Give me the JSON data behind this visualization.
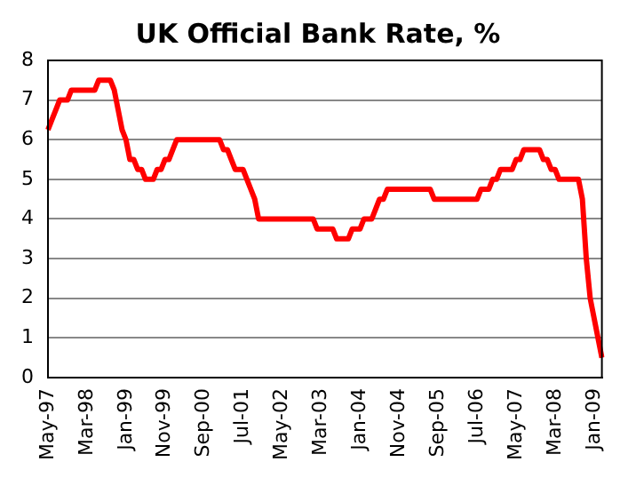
{
  "chart_data": {
    "type": "line",
    "title": "UK Official Bank Rate, %",
    "categories": [
      "May-97",
      null,
      null,
      null,
      null,
      null,
      null,
      null,
      null,
      null,
      "Mar-98",
      null,
      null,
      null,
      null,
      null,
      null,
      null,
      null,
      null,
      "Jan-99",
      null,
      null,
      null,
      null,
      null,
      null,
      null,
      null,
      null,
      "Nov-99",
      null,
      null,
      null,
      null,
      null,
      null,
      null,
      null,
      null,
      "Sep-00",
      null,
      null,
      null,
      null,
      null,
      null,
      null,
      null,
      null,
      "Jul-01",
      null,
      null,
      null,
      null,
      null,
      null,
      null,
      null,
      null,
      "May-02",
      null,
      null,
      null,
      null,
      null,
      null,
      null,
      null,
      null,
      "Mar-03",
      null,
      null,
      null,
      null,
      null,
      null,
      null,
      null,
      null,
      "Jan-04",
      null,
      null,
      null,
      null,
      null,
      null,
      null,
      null,
      null,
      "Nov-04",
      null,
      null,
      null,
      null,
      null,
      null,
      null,
      null,
      null,
      "Sep-05",
      null,
      null,
      null,
      null,
      null,
      null,
      null,
      null,
      null,
      "Jul-06",
      null,
      null,
      null,
      null,
      null,
      null,
      null,
      null,
      null,
      "May-07",
      null,
      null,
      null,
      null,
      null,
      null,
      null,
      null,
      null,
      "Mar-08",
      null,
      null,
      null,
      null,
      null,
      null,
      null,
      null,
      null,
      "Jan-09",
      null,
      null
    ],
    "series": [
      {
        "color": "#ff0000",
        "values": [
          6.25,
          6.5,
          6.75,
          7,
          7,
          7,
          7.25,
          7.25,
          7.25,
          7.25,
          7.25,
          7.25,
          7.25,
          7.5,
          7.5,
          7.5,
          7.5,
          7.25,
          6.75,
          6.25,
          6,
          5.5,
          5.5,
          5.25,
          5.25,
          5,
          5,
          5,
          5.25,
          5.25,
          5.5,
          5.5,
          5.75,
          6,
          6,
          6,
          6,
          6,
          6,
          6,
          6,
          6,
          6,
          6,
          6,
          5.75,
          5.75,
          5.5,
          5.25,
          5.25,
          5.25,
          5,
          4.75,
          4.5,
          4,
          4,
          4,
          4,
          4,
          4,
          4,
          4,
          4,
          4,
          4,
          4,
          4,
          4,
          4,
          3.75,
          3.75,
          3.75,
          3.75,
          3.75,
          3.5,
          3.5,
          3.5,
          3.5,
          3.75,
          3.75,
          3.75,
          4,
          4,
          4,
          4.25,
          4.5,
          4.5,
          4.75,
          4.75,
          4.75,
          4.75,
          4.75,
          4.75,
          4.75,
          4.75,
          4.75,
          4.75,
          4.75,
          4.75,
          4.5,
          4.5,
          4.5,
          4.5,
          4.5,
          4.5,
          4.5,
          4.5,
          4.5,
          4.5,
          4.5,
          4.5,
          4.75,
          4.75,
          4.75,
          5,
          5,
          5.25,
          5.25,
          5.25,
          5.25,
          5.5,
          5.5,
          5.75,
          5.75,
          5.75,
          5.75,
          5.75,
          5.5,
          5.5,
          5.25,
          5.25,
          5,
          5,
          5,
          5,
          5,
          5,
          4.5,
          3,
          2,
          1.5,
          1,
          0.5
        ]
      }
    ],
    "ylim": [
      0,
      8
    ],
    "yticks": [
      0,
      1,
      2,
      3,
      4,
      5,
      6,
      7,
      8
    ],
    "grid": "y",
    "legend": false,
    "marker": "none"
  }
}
